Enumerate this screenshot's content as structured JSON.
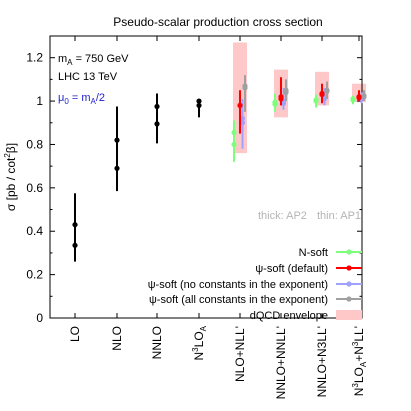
{
  "chart_data": {
    "type": "scatter",
    "title": "Pseudo-scalar production cross section",
    "ylabel": "σ [pb / cot²β]",
    "ylim": [
      0,
      1.3
    ],
    "yticks": [
      "0",
      "0.2",
      "0.4",
      "0.6",
      "0.8",
      "1",
      "1.2"
    ],
    "ytick_values": [
      0,
      0.2,
      0.4,
      0.6,
      0.8,
      1.0,
      1.2
    ],
    "categories": [
      "LO",
      "NLO",
      "NNLO",
      "N³LO_A",
      "NLO+NLL'",
      "NNLO+NNLL'",
      "NNLO+N3LL'",
      "N³LO_A+N³LL'"
    ],
    "category_labels": [
      {
        "main": "LO"
      },
      {
        "main": "NLO"
      },
      {
        "main": "NNLO"
      },
      {
        "main": "N",
        "sup": "3",
        "rest": "LO",
        "sub": "A"
      },
      {
        "main": "NLO+NLL'"
      },
      {
        "main": "NNLO+NNLL'"
      },
      {
        "main": "NNLO+N3LL'"
      },
      {
        "main": "N",
        "sup": "3",
        "rest": "LO",
        "sub": "A",
        "tail": "+N",
        "tsup": "3",
        "trest": "LL'"
      }
    ],
    "annotations": {
      "mass": {
        "main": "m",
        "sub": "A",
        "rest": " = 750 GeV"
      },
      "collider": "LHC 13 TeV",
      "scale": {
        "main": "μ",
        "sub": "0",
        "mid": " = m",
        "sub2": "A",
        "rest": "/2"
      },
      "thick": "thick: AP2",
      "thin": "thin: AP1"
    },
    "fixed_order": [
      {
        "category": "LO",
        "values": [
          0.43,
          0.335
        ],
        "low": 0.26,
        "high": 0.575
      },
      {
        "category": "NLO",
        "values": [
          0.82,
          0.69
        ],
        "low": 0.585,
        "high": 0.975
      },
      {
        "category": "NNLO",
        "values": [
          0.975,
          0.895
        ],
        "low": 0.805,
        "high": 1.035
      },
      {
        "category": "N³LO_A",
        "values": [
          1.0,
          0.98
        ],
        "low": 0.925,
        "high": 1.01
      }
    ],
    "series": [
      {
        "name": "N-soft",
        "color": "#7dff7d",
        "points": [
          {
            "category": "NLO+NLL'",
            "values": [
              0.855,
              0.8
            ],
            "low": 0.72,
            "high": 0.91
          },
          {
            "category": "NNLO+NNLL'",
            "values": [
              0.995,
              0.985
            ],
            "low": 0.95,
            "high": 1.035
          },
          {
            "category": "NNLO+N3LL'",
            "values": [
              1.005,
              1.0
            ],
            "low": 0.97,
            "high": 1.03
          },
          {
            "category": "N³LO_A+N³LL'",
            "values": [
              1.01,
              1.005
            ],
            "low": 0.985,
            "high": 1.025
          }
        ]
      },
      {
        "name": "ψ-soft (default)",
        "color": "#ff0000",
        "points": [
          {
            "category": "NLO+NLL'",
            "values": [
              0.98,
              0.98
            ],
            "low": 0.85,
            "high": 1.05
          },
          {
            "category": "NNLO+NNLL'",
            "values": [
              1.02,
              1.01
            ],
            "low": 0.98,
            "high": 1.11
          },
          {
            "category": "NNLO+N3LL'",
            "values": [
              1.035,
              1.03
            ],
            "low": 0.99,
            "high": 1.08
          },
          {
            "category": "N³LO_A+N³LL'",
            "values": [
              1.02,
              1.015
            ],
            "low": 1.0,
            "high": 1.05
          }
        ]
      },
      {
        "name": "ψ-soft (no constants in the exponent)",
        "color": "#a0a0ff",
        "points": [
          {
            "category": "NLO+NLL'",
            "values": [
              0.92,
              0.9
            ],
            "low": 0.78,
            "high": 1.01
          },
          {
            "category": "NNLO+NNLL'",
            "values": [
              1.0,
              0.99
            ],
            "low": 0.96,
            "high": 1.06
          },
          {
            "category": "NNLO+N3LL'",
            "values": [
              1.02,
              1.01
            ],
            "low": 0.98,
            "high": 1.06
          },
          {
            "category": "N³LO_A+N³LL'",
            "values": [
              1.015,
              1.01
            ],
            "low": 0.99,
            "high": 1.04
          }
        ]
      },
      {
        "name": "ψ-soft (all constants in the exponent)",
        "color": "#a0a0a0",
        "points": [
          {
            "category": "NLO+NLL'",
            "values": [
              1.07,
              1.06
            ],
            "low": 0.95,
            "high": 1.12
          },
          {
            "category": "NNLO+NNLL'",
            "values": [
              1.05,
              1.04
            ],
            "low": 1.0,
            "high": 1.1
          },
          {
            "category": "NNLO+N3LL'",
            "values": [
              1.05,
              1.045
            ],
            "low": 1.01,
            "high": 1.09
          },
          {
            "category": "N³LO_A+N³LL'",
            "values": [
              1.025,
              1.02
            ],
            "low": 1.0,
            "high": 1.05
          }
        ]
      }
    ],
    "envelope": {
      "name": "dQCD envelope",
      "color": "#ffc8c8",
      "bands": [
        {
          "category": "NLO+NLL'",
          "low": 0.76,
          "high": 1.27
        },
        {
          "category": "NNLO+NNLL'",
          "low": 0.925,
          "high": 1.145
        },
        {
          "category": "NNLO+N3LL'",
          "low": 0.98,
          "high": 1.135
        },
        {
          "category": "N³LO_A+N³LL'",
          "low": 0.995,
          "high": 1.08
        }
      ]
    },
    "legend_position": "bottom-right",
    "grid": false
  }
}
